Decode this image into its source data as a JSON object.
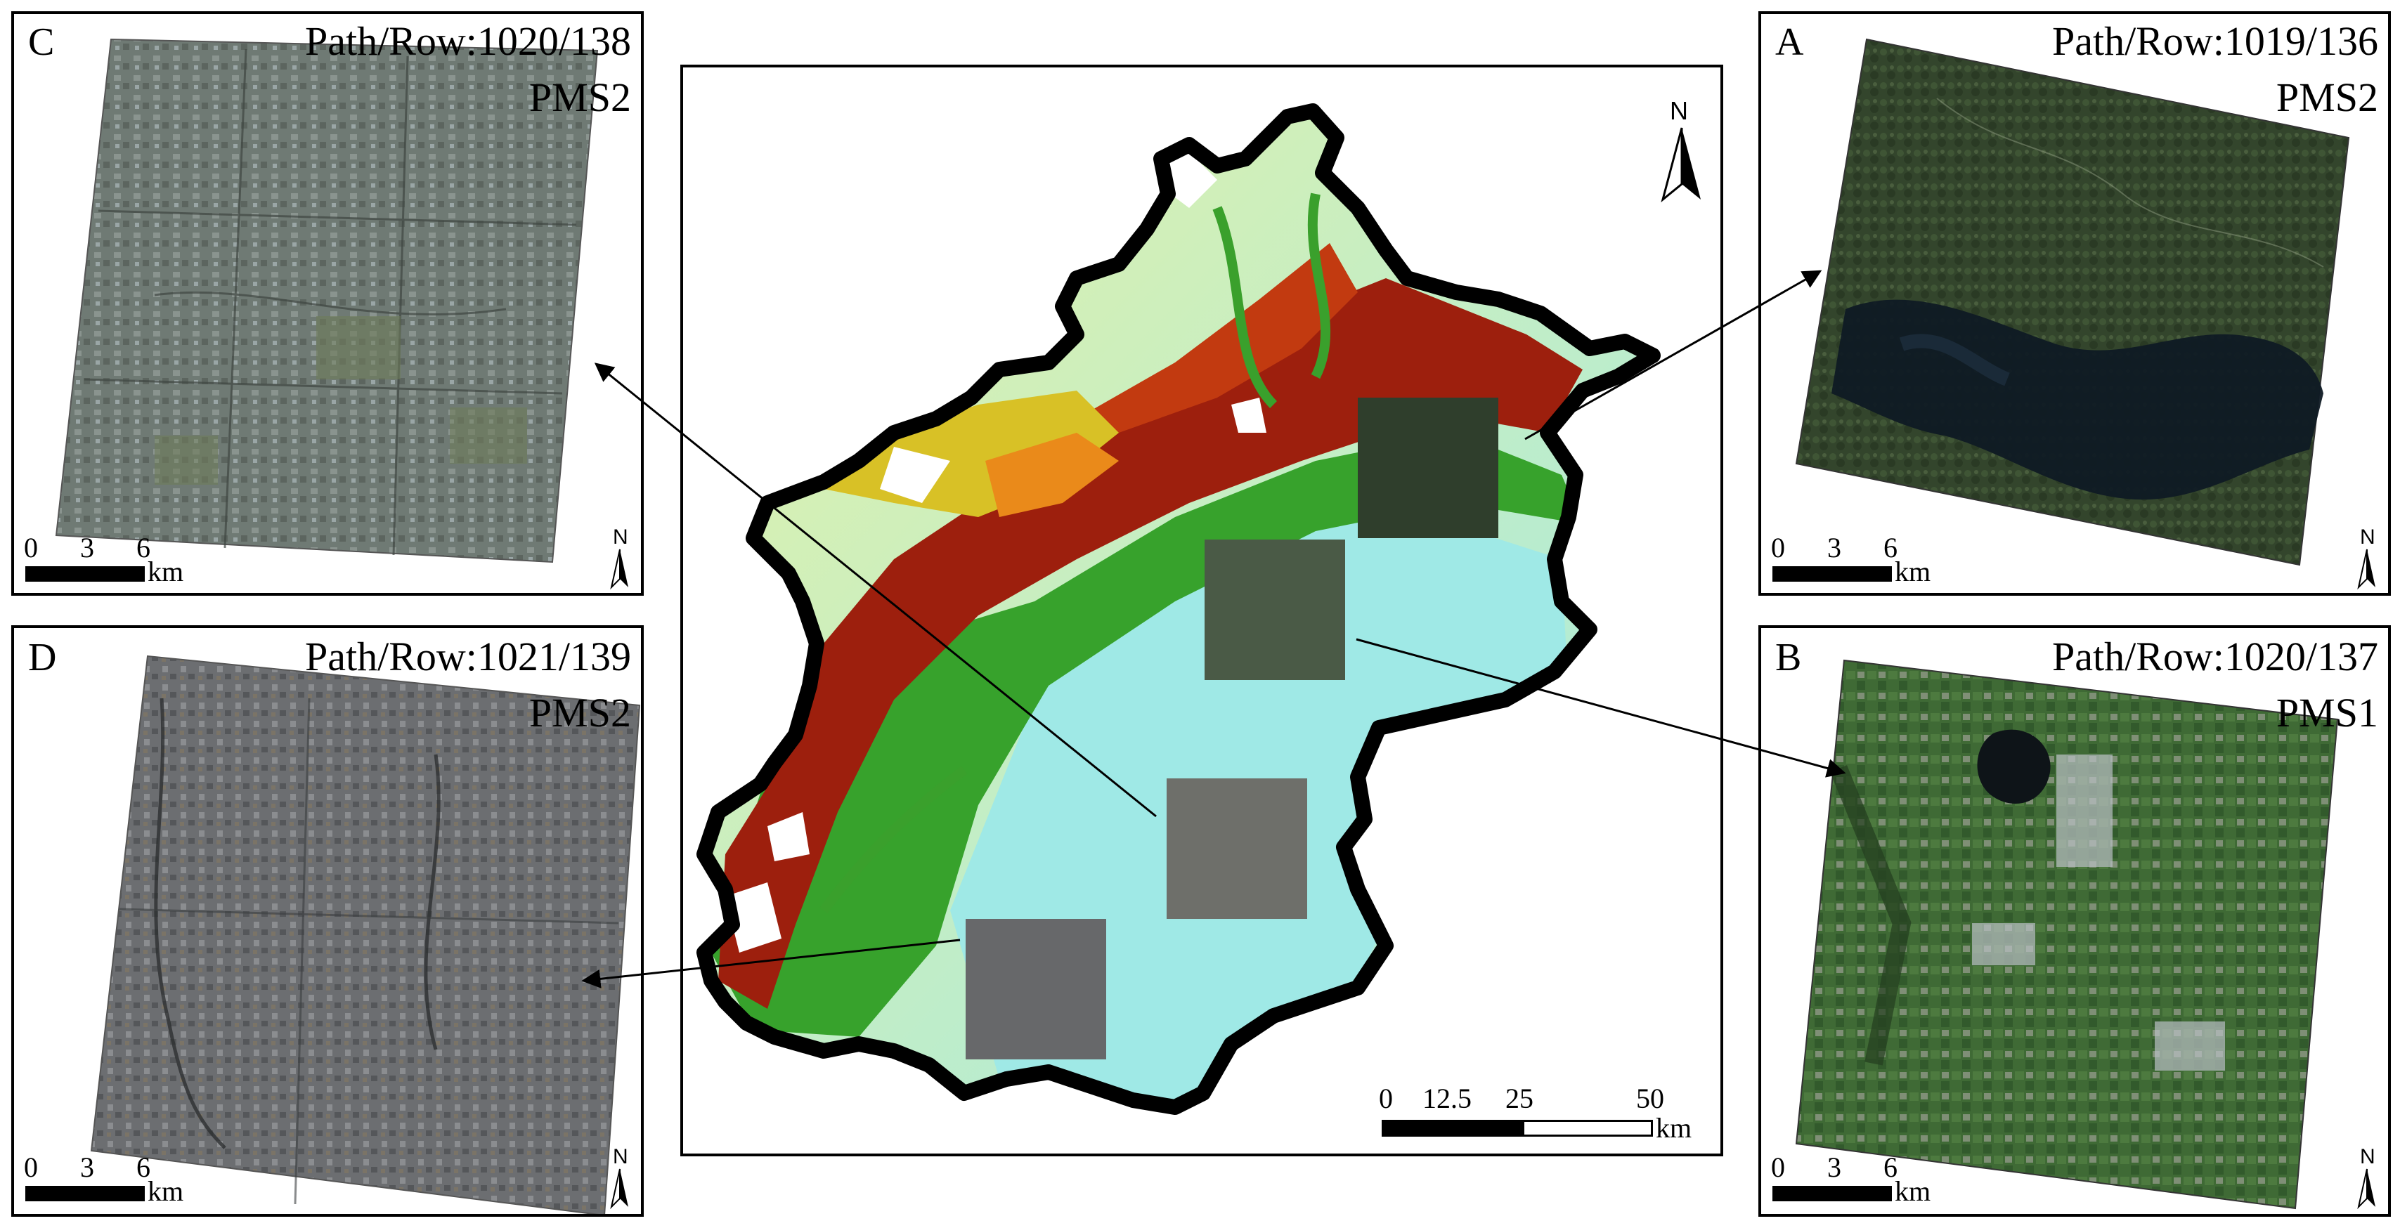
{
  "panels": {
    "C": {
      "letter": "C",
      "path_row": "Path/Row:1020/138",
      "sensor": "PMS2",
      "scale_ticks": [
        "0",
        "3",
        "6"
      ],
      "scale_unit": "km",
      "north": "N"
    },
    "A": {
      "letter": "A",
      "path_row": "Path/Row:1019/136",
      "sensor": "PMS2",
      "scale_ticks": [
        "0",
        "3",
        "6"
      ],
      "scale_unit": "km",
      "north": "N"
    },
    "D": {
      "letter": "D",
      "path_row": "Path/Row:1021/139",
      "sensor": "PMS2",
      "scale_ticks": [
        "0",
        "3",
        "6"
      ],
      "scale_unit": "km",
      "north": "N"
    },
    "B": {
      "letter": "B",
      "path_row": "Path/Row:1020/137",
      "sensor": "PMS1",
      "scale_ticks": [
        "0",
        "3",
        "6"
      ],
      "scale_unit": "km",
      "north": "N"
    }
  },
  "main_map": {
    "north": "N",
    "scale_ticks": [
      "0",
      "12.5",
      "25",
      "50"
    ],
    "scale_unit": "km"
  },
  "colors": {
    "elevation_low": "#9fe9e6",
    "elevation_mid_low": "#e8f3a8",
    "elevation_mid": "#36a52c",
    "elevation_high": "#9b1d0c",
    "elevation_peak": "#ffffff",
    "boundary": "#000000"
  }
}
